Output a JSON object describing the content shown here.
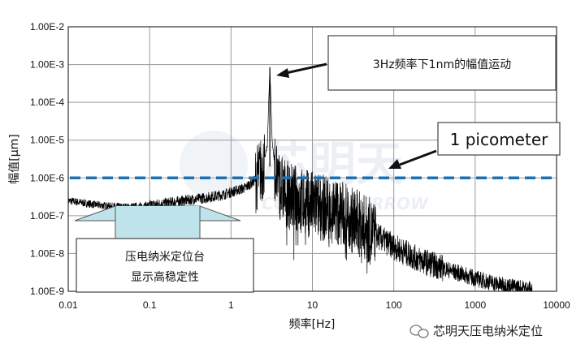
{
  "chart_data": {
    "type": "line",
    "xlabel": "频率[Hz]",
    "ylabel": "幅值[µm]",
    "xscale": "log",
    "yscale": "log",
    "xlim": [
      0.01,
      10000
    ],
    "ylim": [
      1e-09,
      0.01
    ],
    "x_ticks": [
      "0.01",
      "0.1",
      "1",
      "10",
      "100",
      "1000",
      "10000"
    ],
    "y_ticks": [
      "1.00E-2",
      "1.00E-3",
      "1.00E-4",
      "1.00E-5",
      "1.00E-6",
      "1.00E-7",
      "1.00E-8",
      "1.00E-9"
    ],
    "grid": true,
    "series": [
      {
        "color": "#000000",
        "x": [
          0.01,
          0.015,
          0.02,
          0.03,
          0.05,
          0.08,
          0.1,
          0.2,
          0.3,
          0.5,
          0.8,
          1,
          1.5,
          2,
          2.5,
          2.8,
          3,
          3.2,
          3.5,
          4,
          5,
          7,
          10,
          20,
          30,
          50,
          100,
          200,
          500,
          1000,
          2000,
          5000
        ],
        "y": [
          2.5e-07,
          2.2e-07,
          2e-07,
          1.8e-07,
          1.7e-07,
          1.8e-07,
          1.9e-07,
          2.3e-07,
          2.6e-07,
          3e-07,
          3.6e-07,
          4.2e-07,
          5.5e-07,
          9e-07,
          2e-06,
          8e-06,
          0.00085,
          1e-05,
          1.5e-06,
          6e-07,
          3.5e-07,
          2.5e-07,
          2e-07,
          1.3e-07,
          8e-08,
          4e-08,
          1.5e-08,
          7e-09,
          3.5e-09,
          2.2e-09,
          1.5e-09,
          1.1e-09
        ]
      }
    ],
    "reference_line": {
      "label": "1 picometer",
      "y": 1e-06,
      "color": "#1f6fb5",
      "style": "dashed"
    },
    "annotations": [
      {
        "text": "3Hz频率下1nm的幅值运动",
        "x": 3,
        "y": 0.00085
      },
      {
        "text": "1 picometer",
        "x": 90,
        "y": 1e-06
      },
      {
        "text_lines": [
          "压电纳米定位台",
          "显示高稳定性"
        ],
        "x": 0.12,
        "y": 2e-07
      }
    ]
  },
  "watermark": {
    "cn": "芯明天",
    "en": "CORE TOMORROW"
  },
  "brand": {
    "text": "芯明天压电纳米定位"
  }
}
